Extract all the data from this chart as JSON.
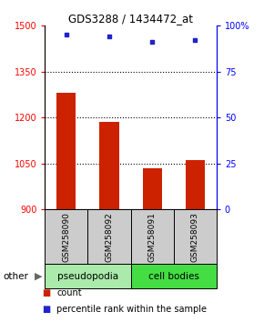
{
  "title": "GDS3288 / 1434472_at",
  "samples": [
    "GSM258090",
    "GSM258092",
    "GSM258091",
    "GSM258093"
  ],
  "bar_values": [
    1280,
    1185,
    1035,
    1062
  ],
  "percentile_values": [
    95,
    94,
    91,
    92
  ],
  "bar_color": "#cc2200",
  "percentile_color": "#2222cc",
  "ylim_left": [
    900,
    1500
  ],
  "ylim_right": [
    0,
    100
  ],
  "yticks_left": [
    900,
    1050,
    1200,
    1350,
    1500
  ],
  "yticks_right": [
    0,
    25,
    50,
    75,
    100
  ],
  "ytick_labels_right": [
    "0",
    "25",
    "50",
    "75",
    "100%"
  ],
  "grid_ticks": [
    1050,
    1200,
    1350
  ],
  "groups": [
    {
      "label": "pseudopodia",
      "color": "#aaeaaa",
      "samples": [
        0,
        1
      ]
    },
    {
      "label": "cell bodies",
      "color": "#44dd44",
      "samples": [
        2,
        3
      ]
    }
  ],
  "other_label": "other",
  "legend_count_label": "count",
  "legend_percentile_label": "percentile rank within the sample",
  "bar_width": 0.45,
  "bar_bottom": 900
}
